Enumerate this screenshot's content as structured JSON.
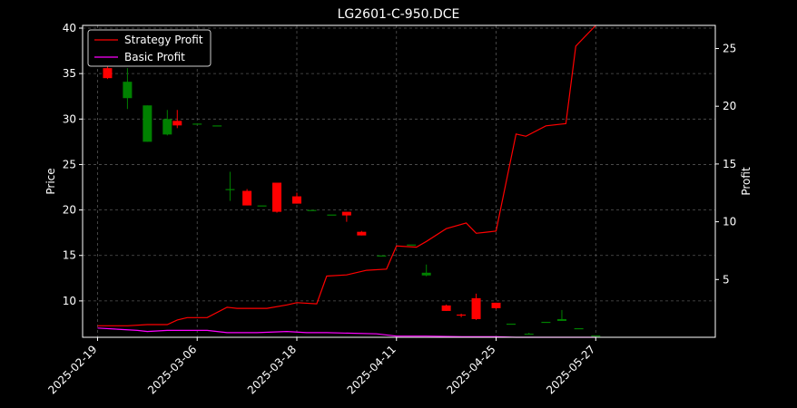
{
  "chart_data": {
    "type": "candlestick-with-lines",
    "title": "LG2601-C-950.DCE",
    "xlabel": "",
    "ylabel_left": "Price",
    "ylabel_right": "Profit",
    "ylim_left": [
      6.0,
      40.3
    ],
    "ylim_right": [
      0.0,
      27.0
    ],
    "yticks_left": [
      10,
      15,
      20,
      25,
      30,
      35,
      40
    ],
    "yticks_right": [
      5,
      10,
      15,
      20,
      25
    ],
    "xlim": [
      -1.5,
      62
    ],
    "xticks": [
      {
        "label": "2025-02-19",
        "index": 0
      },
      {
        "label": "2025-03-06",
        "index": 10
      },
      {
        "label": "2025-03-18",
        "index": 20
      },
      {
        "label": "2025-04-11",
        "index": 30
      },
      {
        "label": "2025-04-25",
        "index": 40
      },
      {
        "label": "2025-05-27",
        "index": 50
      }
    ],
    "grid": true,
    "legend_position": "top-left",
    "colors": {
      "background": "#000000",
      "foreground": "#ffffff",
      "up": "#008000",
      "down": "#ff0000",
      "strategy": "#ff0000",
      "basic": "#ff00ff",
      "grid": "#555555"
    },
    "series": [
      {
        "name": "Strategy Profit",
        "color": "#ff0000",
        "axis": "right",
        "points": [
          [
            0,
            1.0
          ],
          [
            2,
            1.0
          ],
          [
            3,
            1.0
          ],
          [
            5,
            1.1
          ],
          [
            7,
            1.1
          ],
          [
            8,
            1.5
          ],
          [
            9,
            1.7
          ],
          [
            10,
            1.7
          ],
          [
            11,
            1.7
          ],
          [
            13,
            2.6
          ],
          [
            14,
            2.5
          ],
          [
            17,
            2.5
          ],
          [
            19,
            2.8
          ],
          [
            20,
            3.0
          ],
          [
            22,
            2.9
          ],
          [
            23,
            5.3
          ],
          [
            25,
            5.4
          ],
          [
            27,
            5.8
          ],
          [
            29,
            5.9
          ],
          [
            30,
            7.9
          ],
          [
            32,
            7.8
          ],
          [
            33,
            8.3
          ],
          [
            35,
            9.4
          ],
          [
            37,
            9.9
          ],
          [
            38,
            9.0
          ],
          [
            39,
            9.1
          ],
          [
            40,
            9.2
          ],
          [
            42,
            17.6
          ],
          [
            43,
            17.4
          ],
          [
            45,
            18.3
          ],
          [
            47,
            18.5
          ],
          [
            48,
            25.2
          ],
          [
            50,
            27.0
          ]
        ]
      },
      {
        "name": "Basic Profit",
        "color": "#ff00ff",
        "axis": "right",
        "points": [
          [
            0,
            0.8
          ],
          [
            2,
            0.7
          ],
          [
            4,
            0.6
          ],
          [
            5,
            0.5
          ],
          [
            7,
            0.6
          ],
          [
            8,
            0.6
          ],
          [
            10,
            0.6
          ],
          [
            11,
            0.6
          ],
          [
            13,
            0.4
          ],
          [
            16,
            0.4
          ],
          [
            19,
            0.5
          ],
          [
            21,
            0.4
          ],
          [
            23,
            0.4
          ],
          [
            28,
            0.3
          ],
          [
            30,
            0.1
          ],
          [
            33,
            0.1
          ],
          [
            37,
            0.05
          ],
          [
            40,
            0.05
          ],
          [
            42,
            0.0
          ],
          [
            50,
            0.0
          ]
        ]
      }
    ],
    "candles": [
      {
        "x": 1,
        "open": 35.6,
        "high": 36.2,
        "low": 34.4,
        "close": 34.5
      },
      {
        "x": 3,
        "open": 32.3,
        "high": 35.6,
        "low": 31.1,
        "close": 34.1
      },
      {
        "x": 5,
        "open": 27.5,
        "high": 31.5,
        "low": 27.5,
        "close": 31.5
      },
      {
        "x": 7,
        "open": 28.3,
        "high": 31.0,
        "low": 28.2,
        "close": 30.0
      },
      {
        "x": 8,
        "open": 29.8,
        "high": 31.0,
        "low": 29.0,
        "close": 29.3
      },
      {
        "x": 10,
        "open": 29.5,
        "high": 29.5,
        "low": 29.5,
        "close": 29.5
      },
      {
        "x": 12,
        "open": 29.3,
        "high": 29.3,
        "low": 29.3,
        "close": 29.3
      },
      {
        "x": 13.3,
        "open": 22.3,
        "high": 24.2,
        "low": 21.0,
        "close": 22.3
      },
      {
        "x": 15,
        "open": 22.1,
        "high": 22.3,
        "low": 20.5,
        "close": 20.5
      },
      {
        "x": 16.5,
        "open": 20.5,
        "high": 20.5,
        "low": 20.5,
        "close": 20.5
      },
      {
        "x": 18,
        "open": 23.0,
        "high": 23.0,
        "low": 19.7,
        "close": 19.8
      },
      {
        "x": 20,
        "open": 21.5,
        "high": 21.9,
        "low": 20.7,
        "close": 20.7
      },
      {
        "x": 21.5,
        "open": 20.0,
        "high": 20.0,
        "low": 20.0,
        "close": 20.0
      },
      {
        "x": 23.5,
        "open": 19.5,
        "high": 19.5,
        "low": 19.5,
        "close": 19.5
      },
      {
        "x": 25,
        "open": 19.8,
        "high": 19.8,
        "low": 18.7,
        "close": 19.4
      },
      {
        "x": 26.5,
        "open": 17.6,
        "high": 17.7,
        "low": 17.2,
        "close": 17.2
      },
      {
        "x": 28.5,
        "open": 15.0,
        "high": 15.0,
        "low": 15.0,
        "close": 15.0
      },
      {
        "x": 31.5,
        "open": 16.2,
        "high": 16.2,
        "low": 16.2,
        "close": 16.2
      },
      {
        "x": 33,
        "open": 12.8,
        "high": 14.0,
        "low": 12.7,
        "close": 13.1
      },
      {
        "x": 35,
        "open": 9.5,
        "high": 9.6,
        "low": 8.9,
        "close": 8.9
      },
      {
        "x": 36.5,
        "open": 8.5,
        "high": 8.6,
        "low": 8.2,
        "close": 8.4
      },
      {
        "x": 38,
        "open": 10.3,
        "high": 10.8,
        "low": 7.9,
        "close": 8.0
      },
      {
        "x": 40,
        "open": 9.8,
        "high": 9.8,
        "low": 9.1,
        "close": 9.2
      },
      {
        "x": 41.5,
        "open": 7.5,
        "high": 7.5,
        "low": 7.5,
        "close": 7.5
      },
      {
        "x": 43.3,
        "open": 6.4,
        "high": 6.5,
        "low": 6.3,
        "close": 6.4
      },
      {
        "x": 45,
        "open": 7.7,
        "high": 7.7,
        "low": 7.7,
        "close": 7.7
      },
      {
        "x": 46.6,
        "open": 7.8,
        "high": 9.0,
        "low": 7.8,
        "close": 8.0
      },
      {
        "x": 48.3,
        "open": 7.0,
        "high": 7.0,
        "low": 7.0,
        "close": 7.0
      },
      {
        "x": 50,
        "open": 6.2,
        "high": 6.2,
        "low": 6.2,
        "close": 6.2
      }
    ]
  }
}
